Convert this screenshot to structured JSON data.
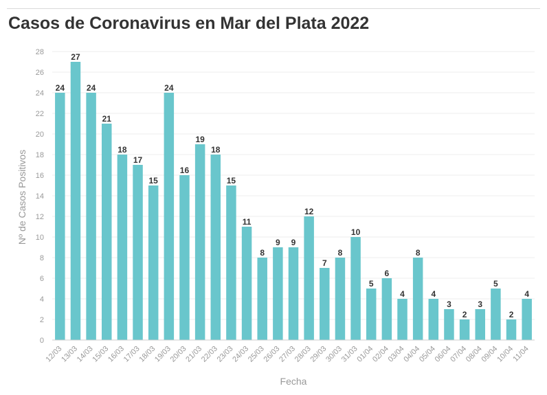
{
  "colors": {
    "bar": "#69c6cc",
    "grid": "#eeeeee",
    "tick": "#999999",
    "label": "#333333"
  },
  "chart_data": {
    "type": "bar",
    "title": "Casos de Coronavirus en Mar del Plata 2022",
    "xlabel": "Fecha",
    "ylabel": "Nº de Casos Positivos",
    "ylim": [
      0,
      28
    ],
    "yticks": [
      0,
      2,
      4,
      6,
      8,
      10,
      12,
      14,
      16,
      18,
      20,
      22,
      24,
      26,
      28
    ],
    "grid": true,
    "categories": [
      "12/03",
      "13/03",
      "14/03",
      "15/03",
      "16/03",
      "17/03",
      "18/03",
      "19/03",
      "20/03",
      "21/03",
      "22/03",
      "23/03",
      "24/03",
      "25/03",
      "26/03",
      "27/03",
      "28/03",
      "29/03",
      "30/03",
      "31/03",
      "01/04",
      "02/04",
      "03/04",
      "04/04",
      "05/04",
      "06/04",
      "07/04",
      "08/04",
      "09/04",
      "10/04",
      "11/04"
    ],
    "values": [
      24,
      27,
      24,
      21,
      18,
      17,
      15,
      24,
      16,
      19,
      18,
      15,
      11,
      8,
      9,
      9,
      12,
      7,
      8,
      10,
      5,
      6,
      4,
      8,
      4,
      3,
      2,
      3,
      5,
      2,
      4
    ]
  }
}
